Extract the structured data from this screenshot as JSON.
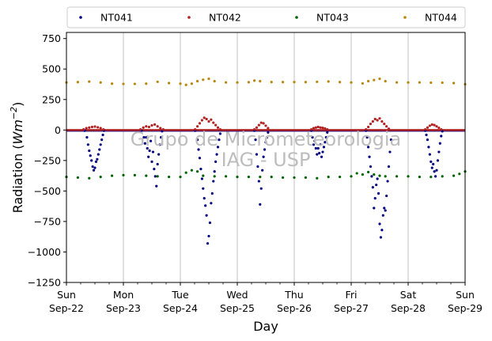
{
  "chart_data": {
    "type": "scatter",
    "xlabel": "Day",
    "ylabel_main": "Radiation (",
    "ylabel_unit": "Wm",
    "ylabel_exp": "−2",
    "ylabel_close": ")",
    "ylim": [
      -1250,
      800
    ],
    "xlim": [
      0,
      7
    ],
    "yticks": [
      750,
      500,
      250,
      0,
      -250,
      -500,
      -750,
      -1000,
      -1250
    ],
    "ytick_labels": [
      "750",
      "500",
      "250",
      "0",
      "−250",
      "−500",
      "−750",
      "−1000",
      "−1250"
    ],
    "xticks": [
      0,
      1,
      2,
      3,
      4,
      5,
      6,
      7
    ],
    "xtick_day": [
      "Sun",
      "Mon",
      "Tue",
      "Wed",
      "Thu",
      "Fri",
      "Sat",
      "Sun"
    ],
    "xtick_date": [
      "Sep-22",
      "Sep-23",
      "Sep-24",
      "Sep-25",
      "Sep-26",
      "Sep-27",
      "Sep-28",
      "Sep-29"
    ],
    "grid": "vertical",
    "legend_position": "top",
    "watermark": [
      "Grupo de Micrometeorologia",
      "IAG - USP"
    ],
    "series": [
      {
        "name": "NT041",
        "color": "#000080",
        "points": [
          [
            0.32,
            -5
          ],
          [
            0.36,
            -60
          ],
          [
            0.38,
            -120
          ],
          [
            0.4,
            -170
          ],
          [
            0.42,
            -210
          ],
          [
            0.44,
            -250
          ],
          [
            0.46,
            -300
          ],
          [
            0.48,
            -330
          ],
          [
            0.5,
            -310
          ],
          [
            0.52,
            -260
          ],
          [
            0.54,
            -240
          ],
          [
            0.56,
            -200
          ],
          [
            0.58,
            -160
          ],
          [
            0.6,
            -120
          ],
          [
            0.62,
            -80
          ],
          [
            0.64,
            -40
          ],
          [
            0.66,
            -5
          ],
          [
            1.32,
            -5
          ],
          [
            1.36,
            -60
          ],
          [
            1.38,
            -110
          ],
          [
            1.4,
            -60
          ],
          [
            1.42,
            -150
          ],
          [
            1.44,
            -220
          ],
          [
            1.46,
            -170
          ],
          [
            1.48,
            -90
          ],
          [
            1.5,
            -260
          ],
          [
            1.52,
            -180
          ],
          [
            1.54,
            -320
          ],
          [
            1.56,
            -380
          ],
          [
            1.58,
            -460
          ],
          [
            1.6,
            -280
          ],
          [
            1.62,
            -200
          ],
          [
            1.64,
            -120
          ],
          [
            1.66,
            -60
          ],
          [
            1.68,
            -10
          ],
          [
            2.26,
            -5
          ],
          [
            2.3,
            -80
          ],
          [
            2.32,
            -160
          ],
          [
            2.34,
            -230
          ],
          [
            2.36,
            -320
          ],
          [
            2.38,
            -400
          ],
          [
            2.4,
            -480
          ],
          [
            2.42,
            -560
          ],
          [
            2.44,
            -620
          ],
          [
            2.46,
            -700
          ],
          [
            2.48,
            -930
          ],
          [
            2.5,
            -870
          ],
          [
            2.52,
            -760
          ],
          [
            2.54,
            -600
          ],
          [
            2.56,
            -520
          ],
          [
            2.58,
            -420
          ],
          [
            2.6,
            -340
          ],
          [
            2.62,
            -260
          ],
          [
            2.64,
            -200
          ],
          [
            2.66,
            -140
          ],
          [
            2.68,
            -80
          ],
          [
            2.7,
            -30
          ],
          [
            3.3,
            -5
          ],
          [
            3.32,
            -80
          ],
          [
            3.34,
            -200
          ],
          [
            3.36,
            -300
          ],
          [
            3.38,
            -420
          ],
          [
            3.4,
            -610
          ],
          [
            3.42,
            -480
          ],
          [
            3.44,
            -330
          ],
          [
            3.46,
            -220
          ],
          [
            3.48,
            -160
          ],
          [
            3.5,
            -100
          ],
          [
            3.52,
            -60
          ],
          [
            3.54,
            -20
          ],
          [
            4.3,
            -5
          ],
          [
            4.32,
            -60
          ],
          [
            4.34,
            -120
          ],
          [
            4.36,
            -90
          ],
          [
            4.38,
            -150
          ],
          [
            4.4,
            -200
          ],
          [
            4.42,
            -150
          ],
          [
            4.44,
            -190
          ],
          [
            4.46,
            -120
          ],
          [
            4.48,
            -220
          ],
          [
            4.5,
            -180
          ],
          [
            4.52,
            -140
          ],
          [
            4.54,
            -100
          ],
          [
            4.56,
            -60
          ],
          [
            4.58,
            -20
          ],
          [
            5.26,
            -5
          ],
          [
            5.28,
            -60
          ],
          [
            5.3,
            -140
          ],
          [
            5.32,
            -220
          ],
          [
            5.34,
            -300
          ],
          [
            5.36,
            -380
          ],
          [
            5.38,
            -470
          ],
          [
            5.4,
            -640
          ],
          [
            5.42,
            -560
          ],
          [
            5.44,
            -450
          ],
          [
            5.46,
            -400
          ],
          [
            5.48,
            -520
          ],
          [
            5.5,
            -770
          ],
          [
            5.52,
            -880
          ],
          [
            5.54,
            -820
          ],
          [
            5.56,
            -700
          ],
          [
            5.58,
            -640
          ],
          [
            5.6,
            -660
          ],
          [
            5.62,
            -540
          ],
          [
            5.64,
            -420
          ],
          [
            5.66,
            -300
          ],
          [
            5.68,
            -180
          ],
          [
            5.7,
            -80
          ],
          [
            6.3,
            -5
          ],
          [
            6.32,
            -40
          ],
          [
            6.34,
            -80
          ],
          [
            6.36,
            -140
          ],
          [
            6.38,
            -200
          ],
          [
            6.4,
            -260
          ],
          [
            6.42,
            -310
          ],
          [
            6.44,
            -280
          ],
          [
            6.46,
            -340
          ],
          [
            6.48,
            -380
          ],
          [
            6.5,
            -330
          ],
          [
            6.52,
            -250
          ],
          [
            6.54,
            -180
          ],
          [
            6.56,
            -110
          ],
          [
            6.58,
            -50
          ],
          [
            6.6,
            -10
          ]
        ]
      },
      {
        "name": "NT042",
        "color": "#b22222",
        "points": [
          [
            0.3,
            5
          ],
          [
            0.35,
            15
          ],
          [
            0.4,
            20
          ],
          [
            0.45,
            25
          ],
          [
            0.5,
            28
          ],
          [
            0.55,
            22
          ],
          [
            0.6,
            15
          ],
          [
            0.65,
            5
          ],
          [
            1.3,
            5
          ],
          [
            1.35,
            20
          ],
          [
            1.4,
            30
          ],
          [
            1.45,
            25
          ],
          [
            1.5,
            38
          ],
          [
            1.55,
            45
          ],
          [
            1.6,
            30
          ],
          [
            1.65,
            15
          ],
          [
            1.7,
            5
          ],
          [
            2.26,
            5
          ],
          [
            2.3,
            30
          ],
          [
            2.34,
            55
          ],
          [
            2.38,
            80
          ],
          [
            2.42,
            100
          ],
          [
            2.46,
            90
          ],
          [
            2.5,
            70
          ],
          [
            2.54,
            85
          ],
          [
            2.58,
            60
          ],
          [
            2.62,
            40
          ],
          [
            2.66,
            20
          ],
          [
            2.7,
            5
          ],
          [
            3.3,
            5
          ],
          [
            3.34,
            20
          ],
          [
            3.38,
            40
          ],
          [
            3.42,
            60
          ],
          [
            3.46,
            55
          ],
          [
            3.5,
            35
          ],
          [
            3.54,
            15
          ],
          [
            4.3,
            5
          ],
          [
            4.34,
            15
          ],
          [
            4.38,
            20
          ],
          [
            4.42,
            25
          ],
          [
            4.46,
            20
          ],
          [
            4.5,
            18
          ],
          [
            4.54,
            12
          ],
          [
            4.58,
            5
          ],
          [
            5.26,
            5
          ],
          [
            5.3,
            25
          ],
          [
            5.34,
            50
          ],
          [
            5.38,
            70
          ],
          [
            5.42,
            90
          ],
          [
            5.46,
            80
          ],
          [
            5.5,
            95
          ],
          [
            5.54,
            70
          ],
          [
            5.58,
            50
          ],
          [
            5.62,
            30
          ],
          [
            5.66,
            10
          ],
          [
            6.3,
            5
          ],
          [
            6.34,
            20
          ],
          [
            6.38,
            35
          ],
          [
            6.42,
            45
          ],
          [
            6.46,
            40
          ],
          [
            6.5,
            30
          ],
          [
            6.54,
            18
          ],
          [
            6.58,
            5
          ]
        ]
      },
      {
        "name": "NT043",
        "color": "#006400",
        "points": [
          [
            0.0,
            -385
          ],
          [
            0.2,
            -390
          ],
          [
            0.4,
            -395
          ],
          [
            0.6,
            -385
          ],
          [
            0.8,
            -375
          ],
          [
            1.0,
            -370
          ],
          [
            1.2,
            -370
          ],
          [
            1.4,
            -375
          ],
          [
            1.6,
            -380
          ],
          [
            1.8,
            -385
          ],
          [
            2.0,
            -385
          ],
          [
            2.1,
            -350
          ],
          [
            2.2,
            -330
          ],
          [
            2.3,
            -340
          ],
          [
            2.4,
            -375
          ],
          [
            2.6,
            -380
          ],
          [
            2.8,
            -380
          ],
          [
            3.0,
            -385
          ],
          [
            3.2,
            -385
          ],
          [
            3.4,
            -385
          ],
          [
            3.6,
            -385
          ],
          [
            3.8,
            -390
          ],
          [
            4.0,
            -390
          ],
          [
            4.2,
            -390
          ],
          [
            4.4,
            -395
          ],
          [
            4.6,
            -385
          ],
          [
            4.8,
            -385
          ],
          [
            5.0,
            -380
          ],
          [
            5.1,
            -355
          ],
          [
            5.2,
            -365
          ],
          [
            5.3,
            -345
          ],
          [
            5.4,
            -365
          ],
          [
            5.5,
            -375
          ],
          [
            5.6,
            -380
          ],
          [
            5.8,
            -380
          ],
          [
            6.0,
            -380
          ],
          [
            6.2,
            -385
          ],
          [
            6.4,
            -385
          ],
          [
            6.6,
            -380
          ],
          [
            6.8,
            -375
          ],
          [
            6.9,
            -360
          ],
          [
            7.0,
            -340
          ]
        ]
      },
      {
        "name": "NT044",
        "color": "#b8860b",
        "points": [
          [
            0.0,
            390
          ],
          [
            0.2,
            393
          ],
          [
            0.4,
            397
          ],
          [
            0.6,
            390
          ],
          [
            0.8,
            380
          ],
          [
            1.0,
            378
          ],
          [
            1.2,
            378
          ],
          [
            1.4,
            380
          ],
          [
            1.6,
            395
          ],
          [
            1.8,
            385
          ],
          [
            2.0,
            380
          ],
          [
            2.1,
            370
          ],
          [
            2.2,
            380
          ],
          [
            2.3,
            400
          ],
          [
            2.4,
            412
          ],
          [
            2.5,
            420
          ],
          [
            2.6,
            400
          ],
          [
            2.8,
            390
          ],
          [
            3.0,
            390
          ],
          [
            3.2,
            392
          ],
          [
            3.3,
            405
          ],
          [
            3.4,
            400
          ],
          [
            3.6,
            393
          ],
          [
            3.8,
            393
          ],
          [
            4.0,
            393
          ],
          [
            4.2,
            393
          ],
          [
            4.4,
            395
          ],
          [
            4.6,
            398
          ],
          [
            4.8,
            393
          ],
          [
            5.0,
            390
          ],
          [
            5.2,
            382
          ],
          [
            5.3,
            400
          ],
          [
            5.4,
            410
          ],
          [
            5.5,
            420
          ],
          [
            5.6,
            400
          ],
          [
            5.8,
            390
          ],
          [
            6.0,
            390
          ],
          [
            6.2,
            390
          ],
          [
            6.4,
            388
          ],
          [
            6.6,
            388
          ],
          [
            6.8,
            385
          ],
          [
            7.0,
            375
          ]
        ]
      }
    ]
  }
}
